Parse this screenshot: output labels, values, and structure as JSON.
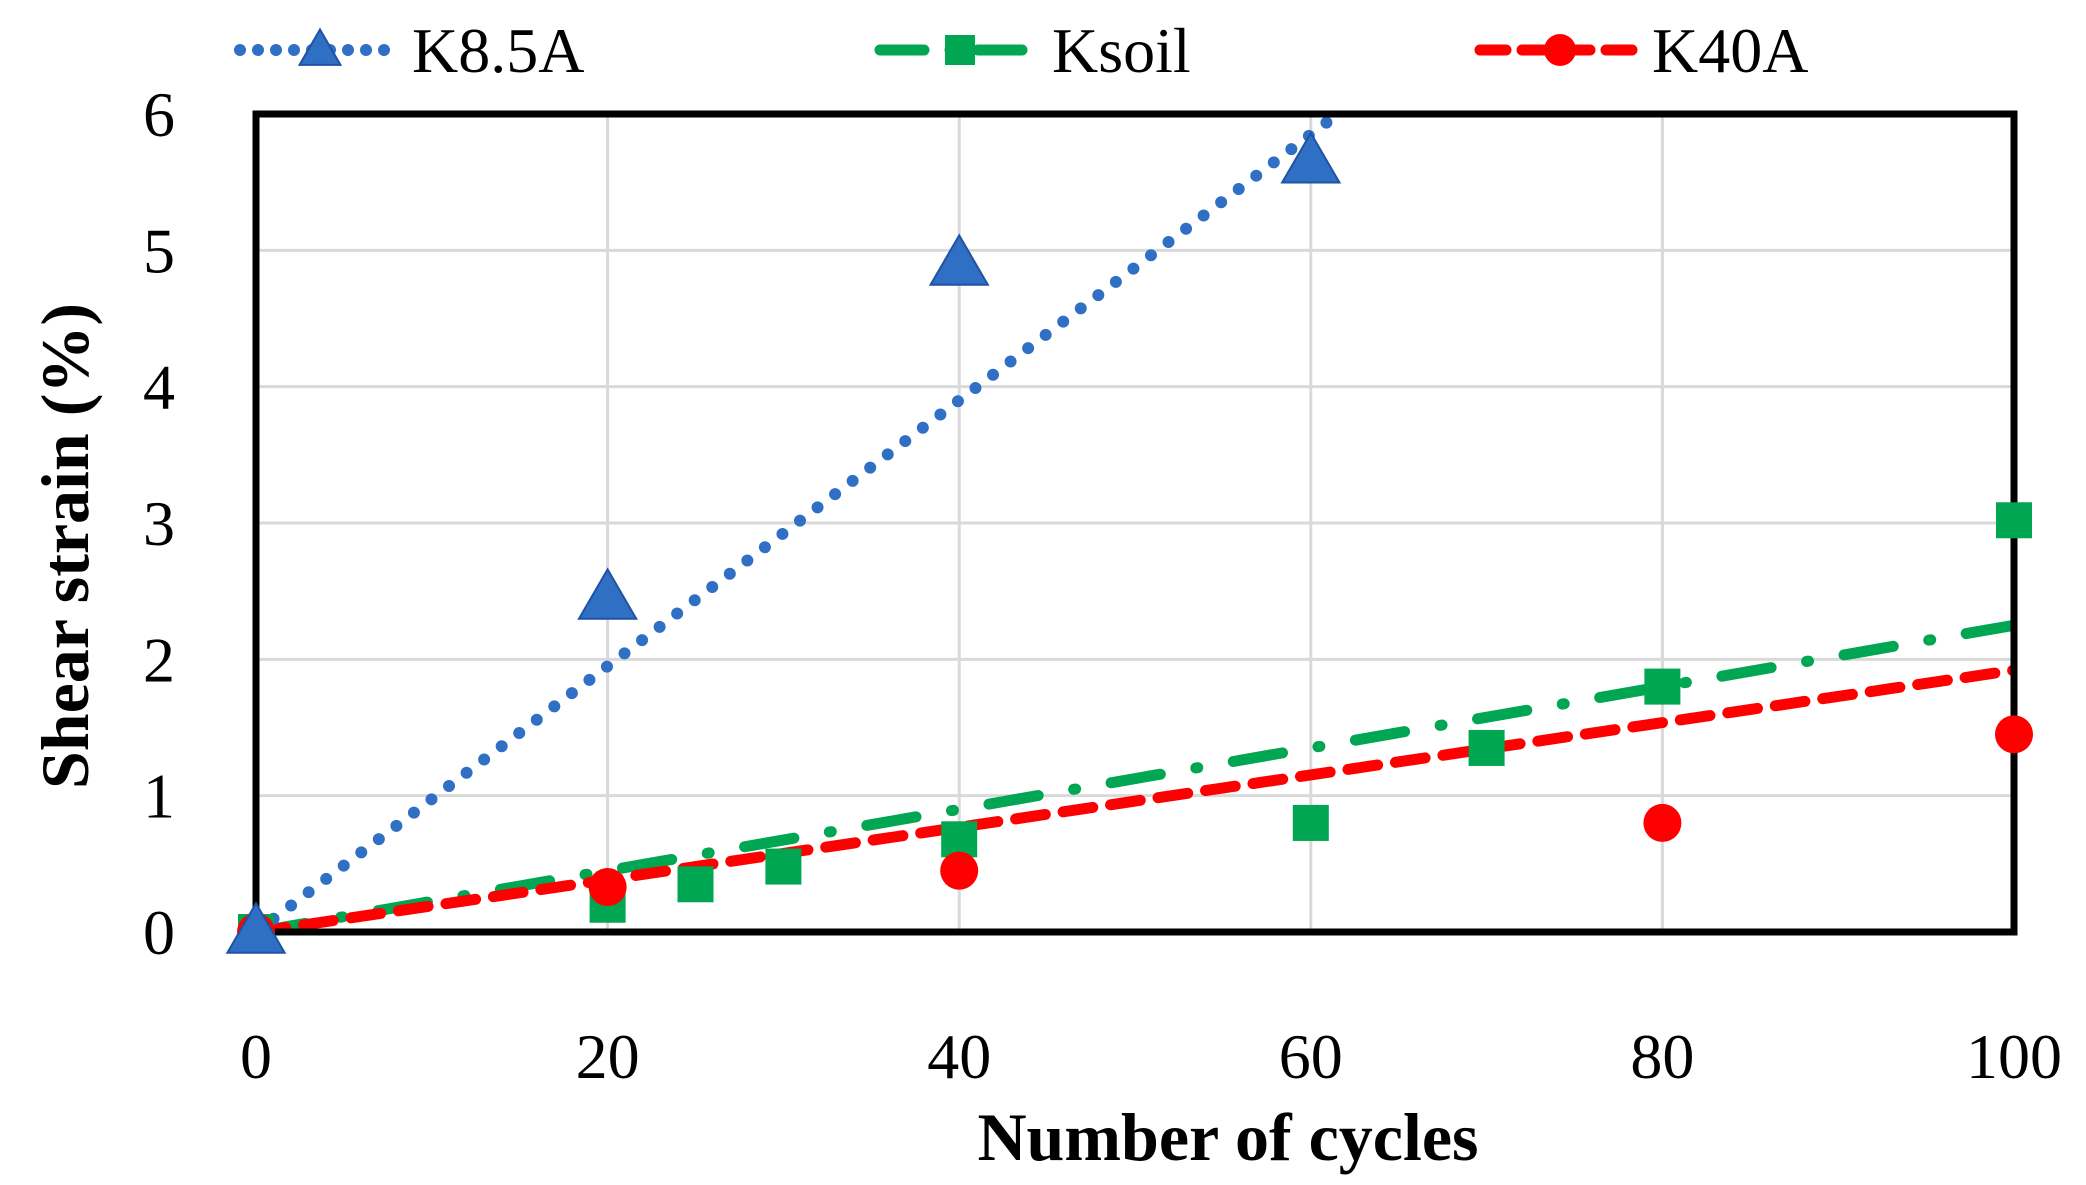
{
  "chart_data": {
    "type": "scatter",
    "title": "",
    "xlabel": "Number of cycles",
    "ylabel": "Shear strain (%)",
    "xlim": [
      0,
      100
    ],
    "ylim": [
      0,
      6
    ],
    "xticks": [
      "0",
      "20",
      "40",
      "60",
      "80",
      "100"
    ],
    "yticks": [
      "0",
      "1",
      "2",
      "3",
      "4",
      "5",
      "6"
    ],
    "grid": true,
    "legend_position": "top",
    "series": [
      {
        "name": "K8.5A",
        "color": "#2f6fc4",
        "marker": "triangle",
        "trendline": "dotted",
        "x": [
          0,
          20,
          40,
          60
        ],
        "y": [
          0,
          2.45,
          4.9,
          5.65
        ],
        "trend_slope": 0.0975
      },
      {
        "name": "Ksoil",
        "color": "#00a651",
        "marker": "square",
        "trendline": "dash-dot",
        "x": [
          0,
          20,
          25,
          30,
          40,
          60,
          70,
          80,
          100
        ],
        "y": [
          0,
          0.2,
          0.35,
          0.48,
          0.68,
          0.8,
          1.35,
          1.8,
          3.02
        ],
        "trend_slope": 0.0225
      },
      {
        "name": "K40A",
        "color": "#ff0000",
        "marker": "circle",
        "trendline": "dashed",
        "x": [
          0,
          20,
          40,
          80,
          100
        ],
        "y": [
          0,
          0.33,
          0.45,
          0.8,
          1.45
        ],
        "trend_slope": 0.0192
      }
    ]
  }
}
